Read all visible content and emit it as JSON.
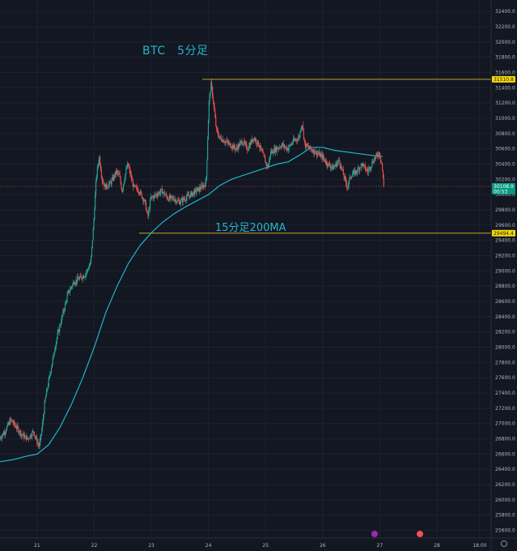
{
  "annotations": {
    "title": "BTC　5分足",
    "ma_label": "15分足200MA"
  },
  "colors": {
    "background": "#131722",
    "up": "#26a69a",
    "down": "#ef5350",
    "ma": "#1fb5c6",
    "level_line": "#c9a227",
    "level_tag": "#f5d90a",
    "current_tag": "#089981",
    "grid": "#1e222d",
    "axis_text": "#b2b5be"
  },
  "axis": {
    "y_ticks": [
      "32400.0",
      "32200.0",
      "32000.0",
      "31800.0",
      "31600.0",
      "31400.0",
      "31200.0",
      "31000.0",
      "30800.0",
      "30600.0",
      "30400.0",
      "30200.0",
      "30000.0",
      "29800.0",
      "29600.0",
      "29400.0",
      "29200.0",
      "29000.0",
      "28800.0",
      "28600.0",
      "28400.0",
      "28200.0",
      "28000.0",
      "27800.0",
      "27600.0",
      "27400.0",
      "27200.0",
      "27000.0",
      "26800.0",
      "26600.0",
      "26400.0",
      "26200.0",
      "26000.0",
      "25800.0",
      "25600.0"
    ],
    "x_ticks": [
      {
        "label": "21",
        "day": 21
      },
      {
        "label": "22",
        "day": 22
      },
      {
        "label": "23",
        "day": 23
      },
      {
        "label": "24",
        "day": 24
      },
      {
        "label": "25",
        "day": 25
      },
      {
        "label": "26",
        "day": 26
      },
      {
        "label": "27",
        "day": 27
      },
      {
        "label": "28",
        "day": 28
      },
      {
        "label": "18:00",
        "day": 28.75
      }
    ]
  },
  "price_tags": {
    "resistance": "31510.8",
    "support": "29494.4",
    "current_price": "30108.9",
    "countdown": "00:53"
  },
  "chart_data": {
    "type": "line",
    "title": "BTC　5分足",
    "xlabel": "",
    "ylabel": "",
    "xlim": [
      20.35,
      28.95
    ],
    "ylim": [
      25500,
      32550
    ],
    "levels": [
      {
        "name": "resistance",
        "value": 31510.8
      },
      {
        "name": "support",
        "value": 29494.4
      }
    ],
    "series": [
      {
        "name": "price",
        "x": [
          20.35,
          20.45,
          20.55,
          20.65,
          20.75,
          20.85,
          20.95,
          21.0,
          21.05,
          21.1,
          21.15,
          21.25,
          21.35,
          21.45,
          21.55,
          21.65,
          21.75,
          21.85,
          21.95,
          22.0,
          22.05,
          22.1,
          22.15,
          22.2,
          22.3,
          22.4,
          22.45,
          22.5,
          22.55,
          22.6,
          22.7,
          22.8,
          22.9,
          22.95,
          23.0,
          23.1,
          23.2,
          23.3,
          23.4,
          23.5,
          23.6,
          23.7,
          23.8,
          23.9,
          23.97,
          24.02,
          24.06,
          24.1,
          24.15,
          24.2,
          24.3,
          24.4,
          24.5,
          24.6,
          24.7,
          24.8,
          24.9,
          25.0,
          25.05,
          25.1,
          25.2,
          25.3,
          25.4,
          25.5,
          25.6,
          25.65,
          25.7,
          25.8,
          25.9,
          26.0,
          26.1,
          26.2,
          26.3,
          26.4,
          26.45,
          26.5,
          26.6,
          26.7,
          26.8,
          26.9,
          26.95,
          27.0,
          27.05,
          27.08
        ],
        "values": [
          26800,
          26900,
          27050,
          26950,
          26850,
          26800,
          26900,
          26780,
          26700,
          26950,
          27300,
          27700,
          28100,
          28400,
          28700,
          28850,
          28900,
          28950,
          29100,
          29600,
          30250,
          30500,
          30200,
          30100,
          30150,
          30300,
          30250,
          30050,
          30250,
          30400,
          30100,
          30050,
          29900,
          29700,
          29950,
          30000,
          30050,
          29950,
          29950,
          29900,
          29950,
          30000,
          30050,
          30100,
          30150,
          31200,
          31450,
          31200,
          30850,
          30750,
          30700,
          30650,
          30600,
          30700,
          30600,
          30750,
          30650,
          30450,
          30350,
          30550,
          30600,
          30650,
          30600,
          30700,
          30750,
          30950,
          30650,
          30600,
          30550,
          30500,
          30400,
          30350,
          30450,
          30200,
          30100,
          30250,
          30300,
          30400,
          30300,
          30450,
          30500,
          30550,
          30400,
          30100
        ]
      },
      {
        "name": "15分足200MA",
        "x": [
          20.35,
          20.6,
          20.8,
          21.0,
          21.2,
          21.4,
          21.6,
          21.8,
          22.0,
          22.2,
          22.4,
          22.6,
          22.8,
          23.0,
          23.2,
          23.4,
          23.6,
          23.8,
          24.0,
          24.2,
          24.4,
          24.6,
          24.8,
          25.0,
          25.2,
          25.4,
          25.6,
          25.8,
          26.0,
          26.2,
          26.4,
          26.6,
          26.8,
          27.0,
          27.05
        ],
        "values": [
          26500,
          26530,
          26570,
          26600,
          26720,
          26950,
          27250,
          27600,
          28000,
          28450,
          28800,
          29100,
          29330,
          29500,
          29640,
          29750,
          29840,
          29920,
          30000,
          30120,
          30200,
          30250,
          30300,
          30350,
          30400,
          30430,
          30520,
          30620,
          30620,
          30580,
          30560,
          30540,
          30520,
          30500,
          30500
        ]
      }
    ]
  }
}
